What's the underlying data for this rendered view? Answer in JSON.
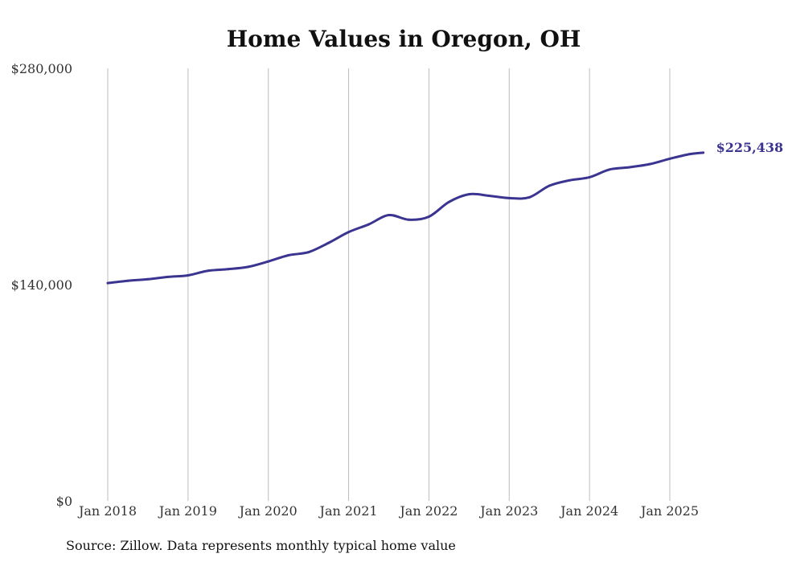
{
  "chart_data": {
    "type": "line",
    "title": "Home Values in Oregon, OH",
    "source": "Source: Zillow. Data represents monthly typical home value",
    "ylim": [
      0,
      280000
    ],
    "y_ticks": [
      {
        "value": 0,
        "label": "$0"
      },
      {
        "value": 140000,
        "label": "$140,000"
      },
      {
        "value": 280000,
        "label": "$280,000"
      }
    ],
    "x_ticks": [
      {
        "value": "2018-01",
        "label": "Jan 2018"
      },
      {
        "value": "2019-01",
        "label": "Jan 2019"
      },
      {
        "value": "2020-01",
        "label": "Jan 2020"
      },
      {
        "value": "2021-01",
        "label": "Jan 2021"
      },
      {
        "value": "2022-01",
        "label": "Jan 2022"
      },
      {
        "value": "2023-01",
        "label": "Jan 2023"
      },
      {
        "value": "2024-01",
        "label": "Jan 2024"
      },
      {
        "value": "2025-01",
        "label": "Jan 2025"
      }
    ],
    "vertical_grid": true,
    "horizontal_grid": false,
    "line_color": "#3b3491",
    "end_label": "$225,438",
    "series": [
      {
        "x": [
          "2018-01",
          "2018-04",
          "2018-07",
          "2018-10",
          "2019-01",
          "2019-04",
          "2019-07",
          "2019-10",
          "2020-01",
          "2020-04",
          "2020-07",
          "2020-10",
          "2021-01",
          "2021-04",
          "2021-07",
          "2021-10",
          "2022-01",
          "2022-04",
          "2022-07",
          "2022-10",
          "2023-01",
          "2023-04",
          "2023-07",
          "2023-10",
          "2024-01",
          "2024-04",
          "2024-07",
          "2024-10",
          "2025-01",
          "2025-04",
          "2025-06"
        ],
        "values": [
          141000,
          142500,
          143500,
          145000,
          146000,
          149000,
          150000,
          151500,
          155000,
          159000,
          161000,
          167000,
          174000,
          179000,
          185000,
          182000,
          184000,
          193500,
          198500,
          197500,
          196000,
          196500,
          204000,
          207500,
          209500,
          214500,
          216000,
          218000,
          221500,
          224500,
          225438
        ]
      }
    ]
  }
}
